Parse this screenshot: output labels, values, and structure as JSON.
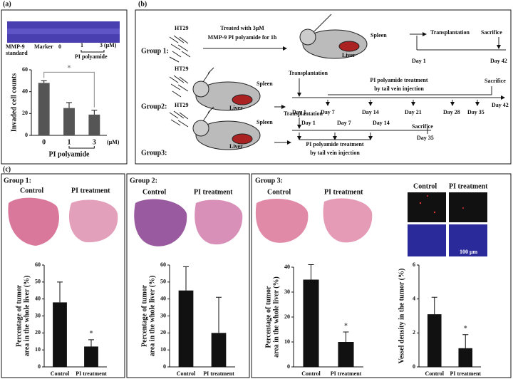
{
  "panel_labels": [
    "(a)",
    "(b)",
    "(c)"
  ],
  "gel": {
    "standard": [
      "MMP-9",
      "standard"
    ],
    "marker": "Marker",
    "doses": [
      "0",
      "1",
      "3 (μM)"
    ],
    "compound": "PI polyamide"
  },
  "diagram": {
    "group1": {
      "title": "Group 1:",
      "cells": "HT29",
      "treatment": [
        "Treated with 3μM",
        "MMP-9 PI polyamide  for 1h"
      ],
      "spleen": "Spleen",
      "liver": "Liver",
      "transplant": "Transplantation",
      "sacrifice": "Sacrifice",
      "days": [
        "Day 1",
        "Day 42"
      ]
    },
    "group2": {
      "title": "Group2:",
      "cells": "HT29",
      "spleen": "Spleen",
      "liver": "Liver",
      "transplant": "Transplantation",
      "treatment": [
        "PI polyamide treatment",
        "by tail vein injection"
      ],
      "sacrifice": "Sacrifice",
      "days": [
        "Day 1",
        "Day 7",
        "Day 14",
        "Day 21",
        "Day 28",
        "Day 35",
        "Day 42"
      ]
    },
    "group3": {
      "title": "Group3:",
      "cells": "HT29",
      "spleen": "Spleen",
      "liver": "Liver",
      "transplant": "Transplantation",
      "days": [
        "Day 1",
        "Day 7",
        "Day 14"
      ],
      "sacrifice": "Sacrifice",
      "end_day": "Day 35",
      "treatment": [
        "PI polyamide treatment",
        "by tail vein injection"
      ]
    }
  },
  "panel_c": {
    "groups": [
      {
        "title": "Group 1:",
        "control": "Control",
        "treatment": "PI  treatment"
      },
      {
        "title": "Group 2:",
        "control": "Control",
        "treatment": "PI treatment"
      },
      {
        "title": "Group 3:",
        "control": "Control",
        "treatment": "PI treatment"
      }
    ],
    "vessel": {
      "control": "Control",
      "treatment": "PI  treatment",
      "scale": "100 μm"
    }
  },
  "chart_data": [
    {
      "type": "bar",
      "ylabel": [
        "Invaded cell counts"
      ],
      "xlabel": "PI polyamide",
      "unit": "(μM)",
      "categories": [
        "0",
        "1",
        "3"
      ],
      "values": [
        48,
        25,
        19
      ],
      "errors": [
        2,
        5,
        4
      ],
      "color": "#555555",
      "ylim": [
        0,
        60
      ],
      "yticks": [
        0,
        20,
        40,
        60
      ],
      "annotation": "*"
    },
    {
      "type": "bar",
      "ylabel": [
        "Percentage of tumor",
        "area in the whole liver (%)"
      ],
      "categories": [
        "Control",
        "PI treatment"
      ],
      "values": [
        38,
        12
      ],
      "errors": [
        12,
        4
      ],
      "color": "#111111",
      "ylim": [
        0,
        60
      ],
      "yticks": [
        0,
        10,
        20,
        30,
        40,
        50,
        60
      ],
      "annotation": "*"
    },
    {
      "type": "bar",
      "ylabel": [
        "Percentage of tumor",
        "area in the whole liver (%)"
      ],
      "categories": [
        "Control",
        "PI treatment"
      ],
      "values": [
        45,
        20
      ],
      "errors": [
        14,
        21
      ],
      "color": "#111111",
      "ylim": [
        0,
        60
      ],
      "yticks": [
        0,
        10,
        20,
        30,
        40,
        50,
        60
      ]
    },
    {
      "type": "bar",
      "ylabel": [
        "Percentage of tumor",
        "area in the whole liver (%)"
      ],
      "categories": [
        "Control",
        "PI treatment"
      ],
      "values": [
        35,
        10
      ],
      "errors": [
        6,
        4
      ],
      "color": "#111111",
      "ylim": [
        0,
        40
      ],
      "yticks": [
        0,
        10,
        20,
        30,
        40
      ],
      "annotation": "*"
    },
    {
      "type": "bar",
      "ylabel": [
        "Vessel density in the tumor (%)"
      ],
      "categories": [
        "Control",
        "PI treatment"
      ],
      "values": [
        3.1,
        1.1
      ],
      "errors": [
        1,
        0.8
      ],
      "color": "#111111",
      "ylim": [
        0,
        6
      ],
      "yticks": [
        0,
        2,
        4,
        6
      ],
      "annotation": "*"
    }
  ]
}
